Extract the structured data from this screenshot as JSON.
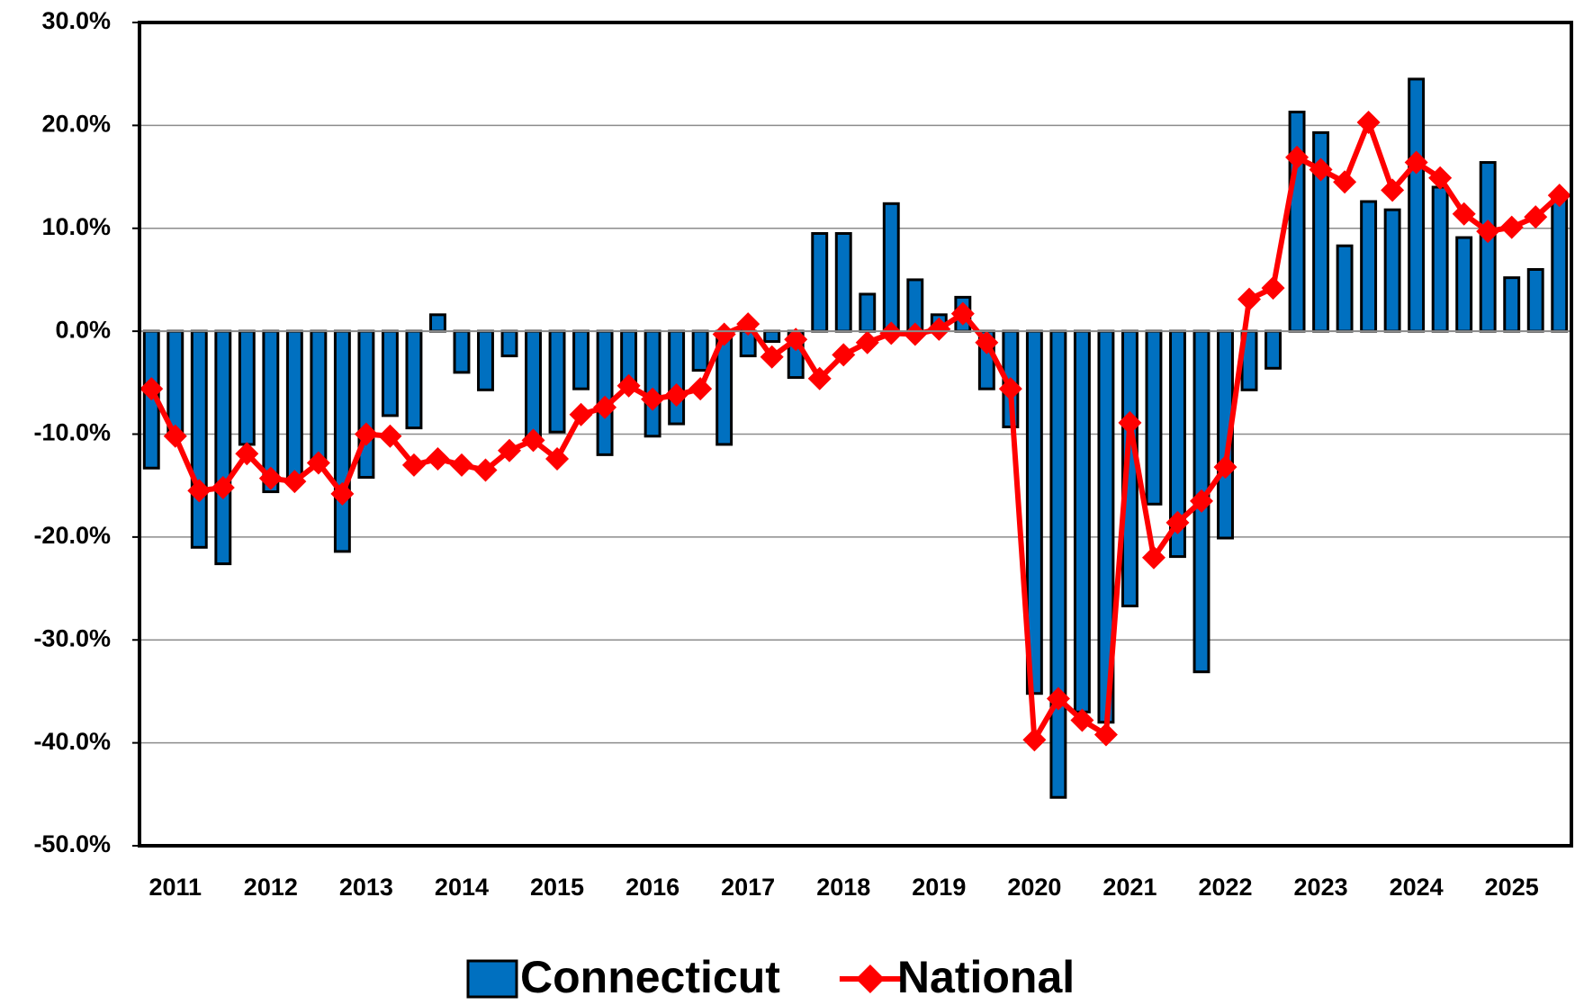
{
  "chart_data": {
    "type": "bar_line",
    "categories": [
      null,
      "2011",
      null,
      null,
      null,
      "2012",
      null,
      null,
      null,
      "2013",
      null,
      null,
      null,
      "2014",
      null,
      null,
      null,
      "2015",
      null,
      null,
      null,
      "2016",
      null,
      null,
      null,
      "2017",
      null,
      null,
      null,
      "2018",
      null,
      null,
      null,
      "2019",
      null,
      null,
      null,
      "2020",
      null,
      null,
      null,
      "2021",
      null,
      null,
      null,
      "2022",
      null,
      null,
      null,
      "2023",
      null,
      null,
      null,
      "2024",
      null,
      null,
      null,
      "2025",
      null,
      null
    ],
    "series": [
      {
        "name": "Connecticut",
        "type": "bar",
        "color": "#0070c0",
        "values": [
          -13.3,
          -10,
          -21,
          -22.6,
          -11,
          -15.6,
          -14.5,
          -13,
          -21.4,
          -14.2,
          -8.2,
          -9.4,
          1.6,
          -4,
          -5.7,
          -2.4,
          -10.5,
          -9.8,
          -5.6,
          -12,
          -5,
          -10.2,
          -9,
          -3.8,
          -11,
          -2.4,
          -1,
          -4.5,
          9.5,
          9.5,
          3.6,
          12.4,
          5,
          1.6,
          3.3,
          -5.6,
          -9.3,
          -35.2,
          -45.3,
          -37,
          -38,
          -26.7,
          -16.8,
          -21.9,
          -33.1,
          -20.1,
          -5.7,
          -3.6,
          21.3,
          19.3,
          8.3,
          12.6,
          11.8,
          24.5,
          14,
          9.1,
          16.4,
          5.2,
          6,
          13
        ]
      },
      {
        "name": "National",
        "type": "line",
        "color": "#ff0000",
        "values": [
          -5.6,
          -10.2,
          -15.5,
          -15.2,
          -11.9,
          -14.3,
          -14.6,
          -12.8,
          -15.8,
          -10,
          -10.2,
          -13,
          -12.4,
          -13,
          -13.5,
          -11.6,
          -10.6,
          -12.4,
          -8.1,
          -7.4,
          -5.3,
          -6.6,
          -6.2,
          -5.6,
          -0.3,
          0.7,
          -2.5,
          -0.8,
          -4.6,
          -2.3,
          -1.1,
          -0.2,
          -0.3,
          0.2,
          1.7,
          -1.1,
          -5.6,
          -39.7,
          -35.7,
          -37.8,
          -39.2,
          -8.9,
          -22,
          -18.6,
          -16.5,
          -13.2,
          3.1,
          4.2,
          16.9,
          15.7,
          14.5,
          20.3,
          13.7,
          16.4,
          14.9,
          11.4,
          9.7,
          10.1,
          11.1,
          13.2
        ]
      }
    ],
    "ylim": [
      -50,
      30
    ],
    "yticks": [
      {
        "value": -50,
        "label": "-50.0%"
      },
      {
        "value": -40,
        "label": "-40.0%"
      },
      {
        "value": -30,
        "label": "-30.0%"
      },
      {
        "value": -20,
        "label": "-20.0%"
      },
      {
        "value": -10,
        "label": "-10.0%"
      },
      {
        "value": 0,
        "label": "0.0%"
      },
      {
        "value": 10,
        "label": "10.0%"
      },
      {
        "value": 20,
        "label": "20.0%"
      },
      {
        "value": 30,
        "label": "30.0%"
      }
    ],
    "grid": true,
    "legend": "bottom"
  }
}
